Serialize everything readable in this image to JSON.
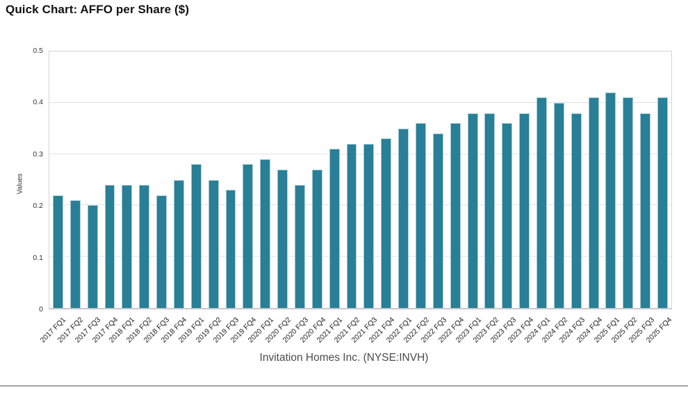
{
  "title": "Quick Chart: AFFO per Share ($)",
  "footer": {
    "legend": "Invitation Homes Inc. (NYSE:INVH)"
  },
  "chart_data": {
    "type": "bar",
    "title": "Quick Chart: AFFO per Share ($)",
    "categories": [
      "2017 FQ1",
      "2017 FQ2",
      "2017 FQ3",
      "2017 FQ4",
      "2018 FQ1",
      "2018 FQ2",
      "2018 FQ3",
      "2018 FQ4",
      "2019 FQ1",
      "2019 FQ2",
      "2019 FQ3",
      "2019 FQ4",
      "2020 FQ1",
      "2020 FQ2",
      "2020 FQ3",
      "2020 FQ4",
      "2021 FQ1",
      "2021 FQ2",
      "2021 FQ3",
      "2021 FQ4",
      "2022 FQ1",
      "2022 FQ2",
      "2022 FQ3",
      "2022 FQ4",
      "2023 FQ1",
      "2023 FQ2",
      "2023 FQ3",
      "2023 FQ4",
      "2024 FQ1",
      "2024 FQ2",
      "2024 FQ3",
      "2024 FQ4",
      "2025 FQ1",
      "2025 FQ2",
      "2025 FQ3",
      "2025 FQ4"
    ],
    "values": [
      0.22,
      0.21,
      0.2,
      0.24,
      0.24,
      0.24,
      0.22,
      0.25,
      0.28,
      0.25,
      0.23,
      0.28,
      0.29,
      0.27,
      0.24,
      0.27,
      0.31,
      0.32,
      0.32,
      0.33,
      0.35,
      0.36,
      0.34,
      0.36,
      0.38,
      0.38,
      0.36,
      0.38,
      0.41,
      0.4,
      0.38,
      0.41,
      0.42,
      0.41,
      0.38,
      0.41
    ],
    "xlabel": "",
    "ylabel": "Values",
    "ylim": [
      0,
      0.5
    ],
    "yticks": [
      0,
      0.1,
      0.2,
      0.3,
      0.4,
      0.5
    ],
    "ytick_labels": [
      "0",
      "0.1",
      "0.2",
      "0.3",
      "0.4",
      "0.5"
    ],
    "grid": true,
    "legend": "Invitation Homes Inc. (NYSE:INVH)",
    "legend_position": "bottom",
    "bar_color": "#287f96",
    "bar_edge_color": "#a4cbd8",
    "gridline_color": "#e2e2e2"
  }
}
